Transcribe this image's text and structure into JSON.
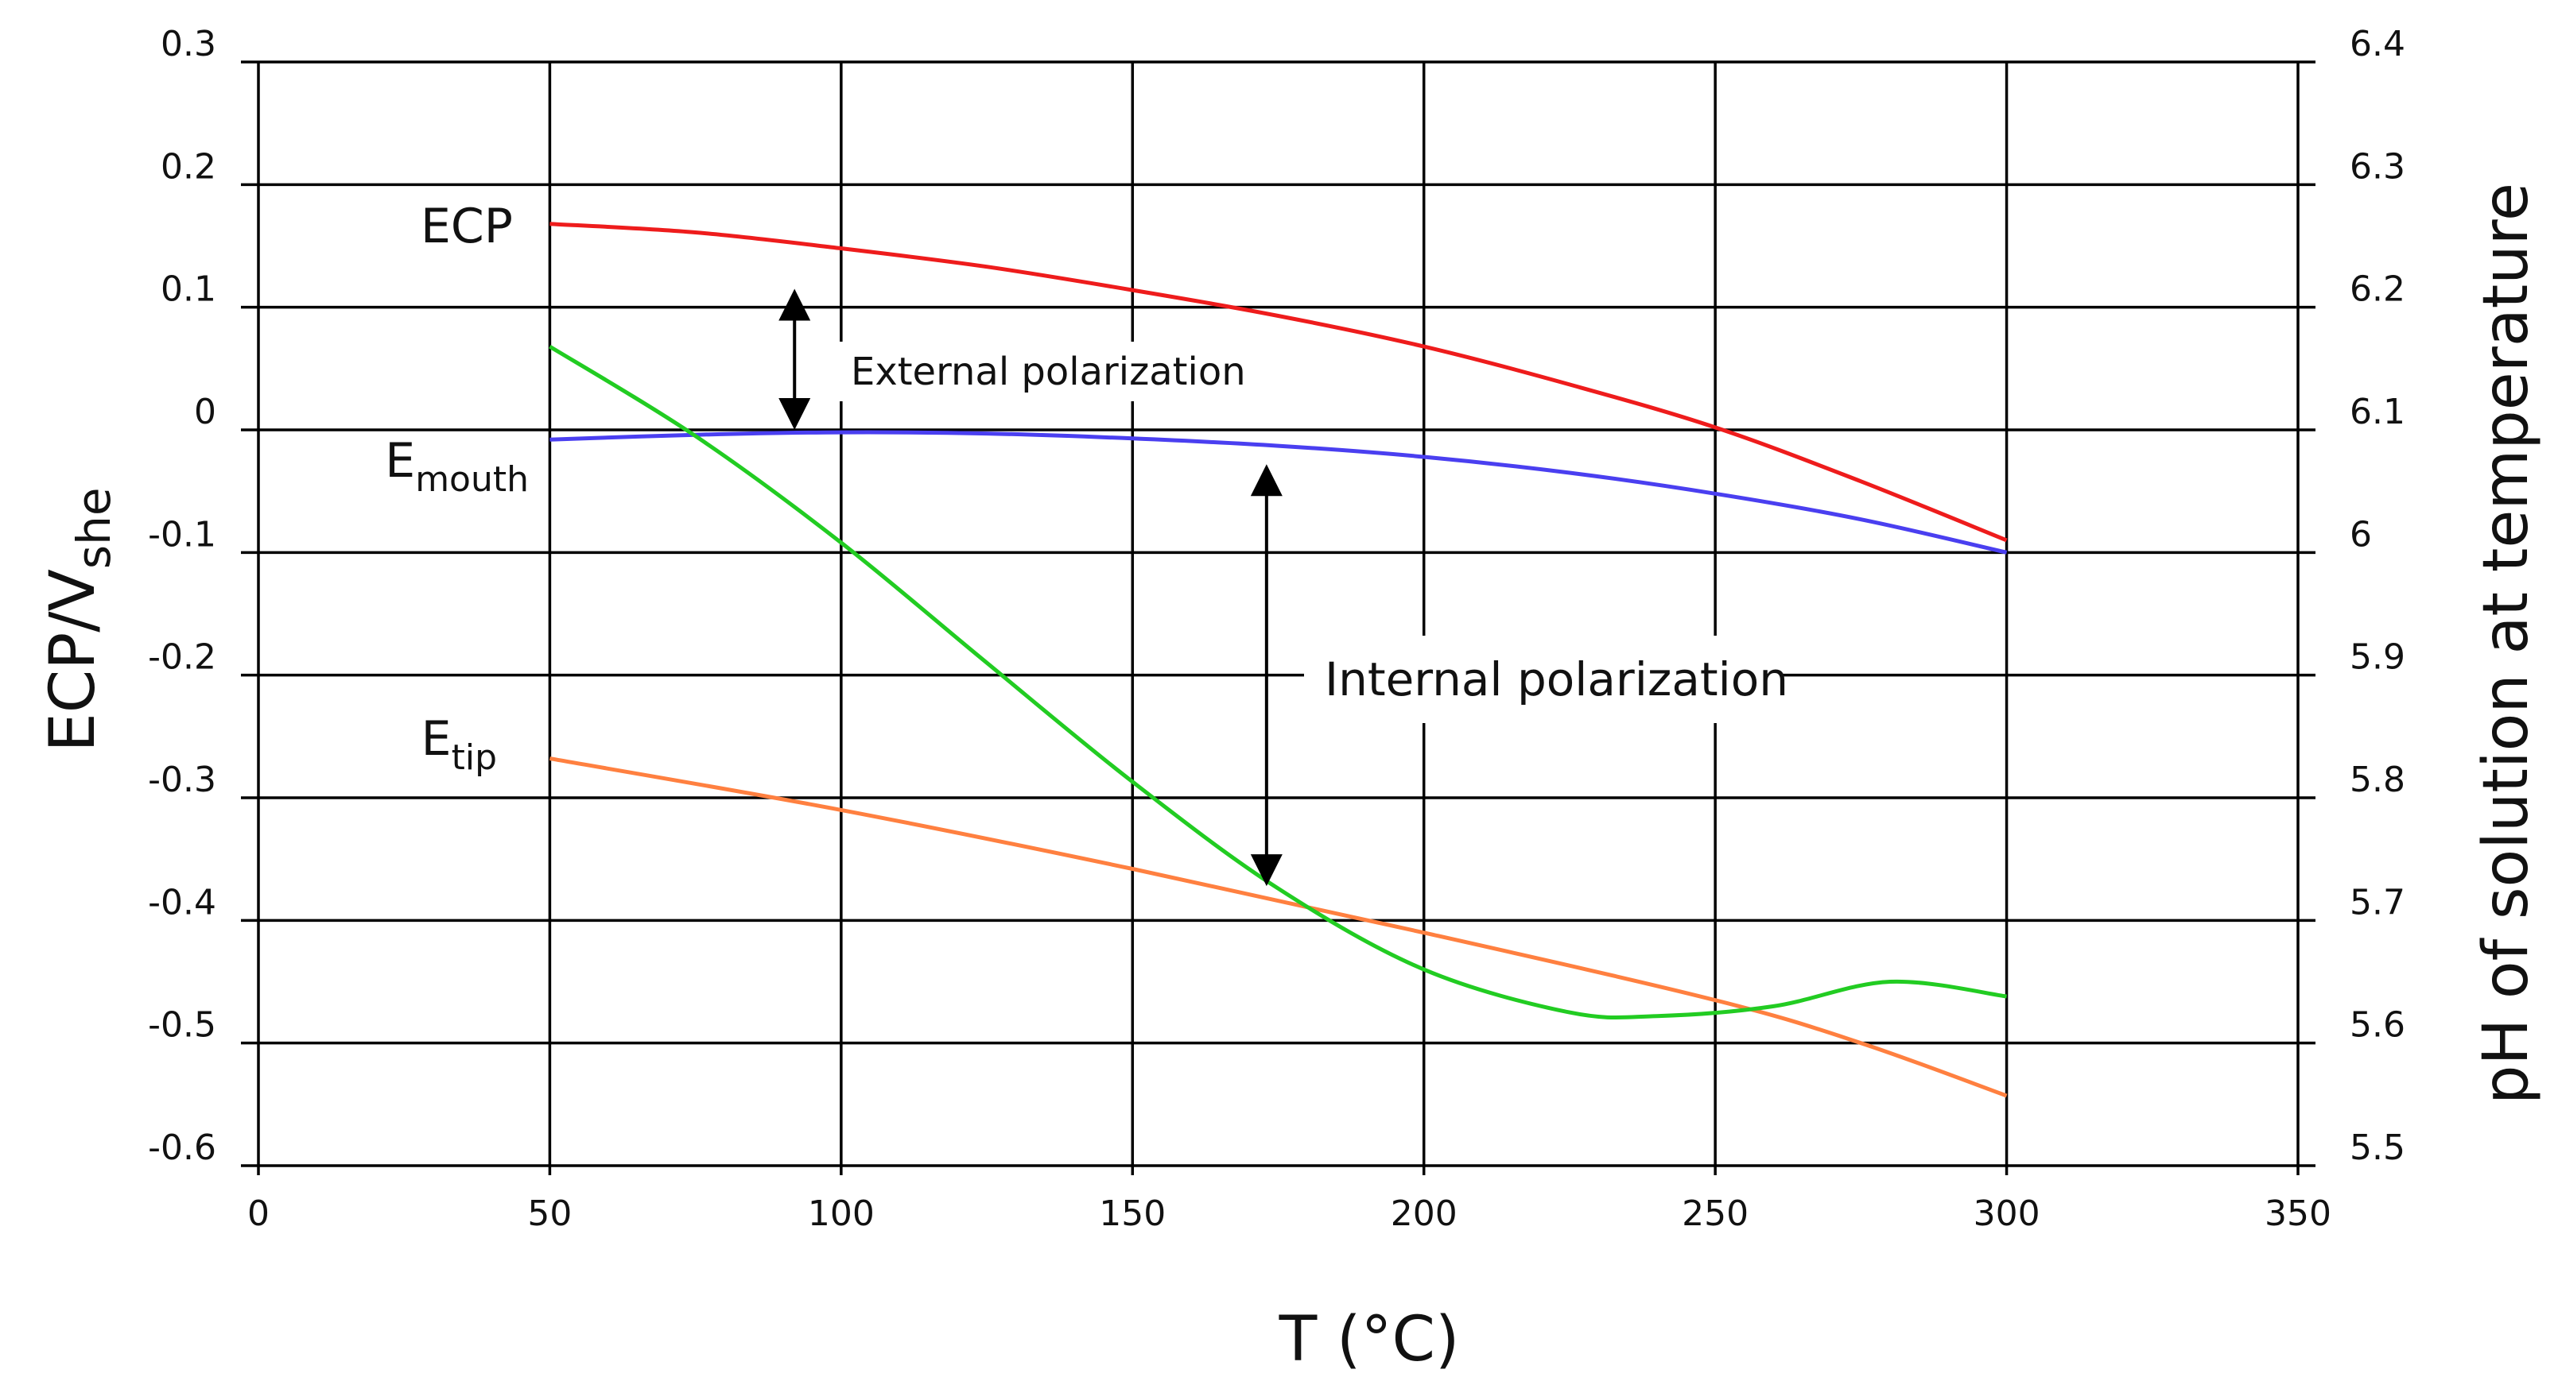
{
  "chart_data": {
    "type": "line",
    "xlabel": "T (°C)",
    "ylabel": "ECP/Vshe",
    "ylabel_main": "ECP/V",
    "ylabel_sub": "she",
    "y2label": "pH of solution at temperature",
    "xlim": [
      0,
      350
    ],
    "ylim": [
      -0.6,
      0.3
    ],
    "y2lim": [
      5.5,
      6.4
    ],
    "grid": true,
    "x_ticks": [
      {
        "value": 0,
        "label": "0"
      },
      {
        "value": 50,
        "label": "50"
      },
      {
        "value": 100,
        "label": "100"
      },
      {
        "value": 150,
        "label": "150"
      },
      {
        "value": 200,
        "label": "200"
      },
      {
        "value": 250,
        "label": "250"
      },
      {
        "value": 300,
        "label": "300"
      },
      {
        "value": 350,
        "label": "350"
      }
    ],
    "y_ticks": [
      {
        "value": 0.3,
        "label": "0.3"
      },
      {
        "value": 0.2,
        "label": "0.2"
      },
      {
        "value": 0.1,
        "label": "0.1"
      },
      {
        "value": 0,
        "label": "0"
      },
      {
        "value": -0.1,
        "label": "-0.1"
      },
      {
        "value": -0.2,
        "label": "-0.2"
      },
      {
        "value": -0.3,
        "label": "-0.3"
      },
      {
        "value": -0.4,
        "label": "-0.4"
      },
      {
        "value": -0.5,
        "label": "-0.5"
      },
      {
        "value": -0.6,
        "label": "-0.6"
      }
    ],
    "y2_ticks": [
      {
        "value": 6.4,
        "label": "6.4"
      },
      {
        "value": 6.3,
        "label": "6.3"
      },
      {
        "value": 6.2,
        "label": "6.2"
      },
      {
        "value": 6.1,
        "label": "6.1"
      },
      {
        "value": 6.0,
        "label": "6"
      },
      {
        "value": 5.9,
        "label": "5.9"
      },
      {
        "value": 5.8,
        "label": "5.8"
      },
      {
        "value": 5.7,
        "label": "5.7"
      },
      {
        "value": 5.6,
        "label": "5.6"
      },
      {
        "value": 5.5,
        "label": "5.5"
      }
    ],
    "series": [
      {
        "name": "ECP",
        "color": "#ee1c1c",
        "axis": "left",
        "x": [
          50,
          75,
          100,
          125,
          150,
          175,
          200,
          225,
          250,
          275,
          300
        ],
        "values": [
          0.168,
          0.161,
          0.148,
          0.133,
          0.114,
          0.093,
          0.068,
          0.037,
          0.002,
          -0.042,
          -0.09
        ]
      },
      {
        "name": "E_mouth",
        "color": "#4a3ff0",
        "axis": "left",
        "x": [
          50,
          75,
          100,
          125,
          150,
          175,
          200,
          225,
          250,
          275,
          300
        ],
        "values": [
          -0.008,
          -0.004,
          -0.002,
          -0.003,
          -0.007,
          -0.013,
          -0.022,
          -0.035,
          -0.052,
          -0.073,
          -0.1
        ]
      },
      {
        "name": "E_tip",
        "color": "#ff8040",
        "axis": "left",
        "x": [
          50,
          100,
          150,
          200,
          250,
          275,
          300
        ],
        "values": [
          -0.268,
          -0.31,
          -0.358,
          -0.41,
          -0.465,
          -0.5,
          -0.543
        ]
      },
      {
        "name": "pH of solution at temperature",
        "color": "#22cc22",
        "axis": "right",
        "x": [
          50,
          75,
          100,
          125,
          150,
          175,
          200,
          225,
          240,
          260,
          280,
          300
        ],
        "values": [
          6.168,
          6.095,
          6.008,
          5.91,
          5.813,
          5.726,
          5.66,
          5.625,
          5.622,
          5.63,
          5.65,
          5.638
        ]
      }
    ],
    "labels": {
      "ecp": "ECP",
      "emouth_main": "E",
      "emouth_sub": "mouth",
      "etip_main": "E",
      "etip_sub": "tip"
    },
    "annotations": [
      {
        "id": "external",
        "text": "External polarization",
        "x": 92,
        "y_from": 0.115,
        "y_to": 0.0
      },
      {
        "id": "internal",
        "text": "Internal polarization",
        "x": 173,
        "y_from": -0.028,
        "y_to": -0.372
      }
    ]
  }
}
